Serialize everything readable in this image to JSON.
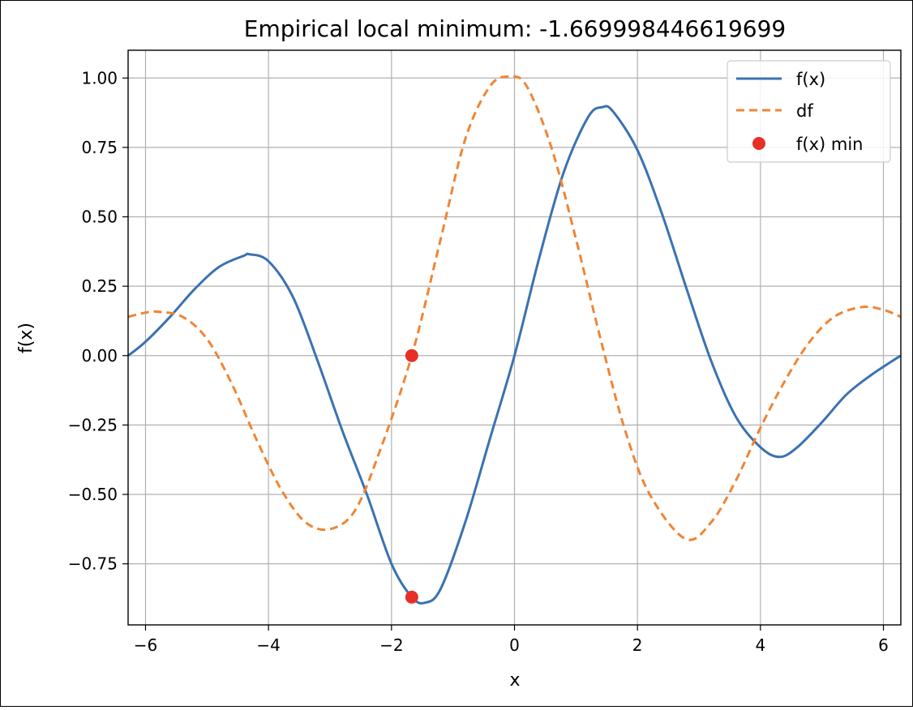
{
  "chart_data": {
    "type": "line",
    "title": "Empirical local minimum: -1.669998446619699",
    "xlabel": "x",
    "ylabel": "f(x)",
    "xlim": [
      -6.2832,
      6.2832
    ],
    "ylim": [
      -0.97,
      1.1
    ],
    "grid": true,
    "legend_position": "top-right",
    "xticks": [
      -6,
      -4,
      -2,
      0,
      2,
      4,
      6
    ],
    "xtick_labels": [
      "−6",
      "−4",
      "−2",
      "0",
      "2",
      "4",
      "6"
    ],
    "yticks": [
      1.0,
      0.75,
      0.5,
      0.25,
      0.0,
      -0.25,
      -0.5,
      -0.75
    ],
    "ytick_labels": [
      "1.00",
      "0.75",
      "0.50",
      "0.25",
      "0.00",
      "−0.25",
      "−0.50",
      "−0.75"
    ],
    "series": [
      {
        "name": "f(x)",
        "style": "solid",
        "color": "#3a72b0",
        "x": [
          -6.28,
          -6.0,
          -5.6,
          -5.2,
          -4.8,
          -4.4,
          -4.31,
          -4.0,
          -3.6,
          -3.2,
          -2.8,
          -2.4,
          -2.0,
          -1.67,
          -1.45,
          -1.2,
          -0.8,
          -0.4,
          0.0,
          0.4,
          0.8,
          1.2,
          1.43,
          1.6,
          2.0,
          2.4,
          2.8,
          3.2,
          3.6,
          4.0,
          4.31,
          4.6,
          5.0,
          5.4,
          5.8,
          6.28
        ],
        "y": [
          0.0,
          0.05,
          0.14,
          0.24,
          0.32,
          0.36,
          0.365,
          0.34,
          0.21,
          -0.02,
          -0.27,
          -0.5,
          -0.75,
          -0.87,
          -0.89,
          -0.84,
          -0.6,
          -0.3,
          0.0,
          0.35,
          0.66,
          0.86,
          0.895,
          0.88,
          0.74,
          0.51,
          0.24,
          -0.02,
          -0.22,
          -0.33,
          -0.365,
          -0.33,
          -0.24,
          -0.14,
          -0.07,
          0.0
        ]
      },
      {
        "name": "df",
        "style": "dashed",
        "color": "#ef8535",
        "x": [
          -6.28,
          -6.0,
          -5.8,
          -5.4,
          -5.0,
          -4.6,
          -4.2,
          -3.8,
          -3.4,
          -3.0,
          -2.6,
          -2.2,
          -1.67,
          -1.2,
          -0.8,
          -0.4,
          -0.08,
          0.2,
          0.6,
          1.0,
          1.4,
          1.8,
          2.2,
          2.78,
          3.2,
          3.6,
          4.0,
          4.4,
          4.8,
          5.2,
          5.65,
          6.0,
          6.28
        ],
        "y": [
          0.14,
          0.155,
          0.158,
          0.14,
          0.06,
          -0.1,
          -0.3,
          -0.48,
          -0.6,
          -0.625,
          -0.56,
          -0.35,
          0.0,
          0.42,
          0.78,
          0.97,
          1.005,
          0.97,
          0.75,
          0.42,
          0.06,
          -0.27,
          -0.5,
          -0.66,
          -0.6,
          -0.45,
          -0.26,
          -0.09,
          0.05,
          0.14,
          0.175,
          0.165,
          0.14
        ]
      },
      {
        "name": "f(x) min",
        "style": "marker",
        "color": "#e63025",
        "x": [
          -1.67,
          -1.67
        ],
        "y": [
          -0.87,
          0.0
        ]
      }
    ]
  }
}
